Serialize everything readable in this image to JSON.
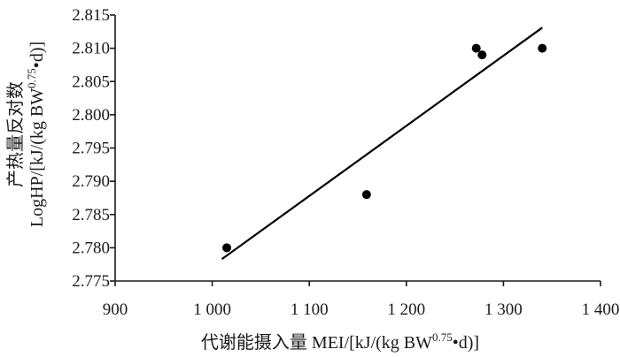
{
  "chart_data": {
    "type": "scatter",
    "title": "",
    "xlabel": {
      "prefix": "代谢能摄入量 MEI/[kJ/(kg BW",
      "sup": "0.75",
      "suffix": "•d)]"
    },
    "ylabel": {
      "line1": "产热量反对数",
      "line2_prefix": "LogHP/[kJ/(kg BW",
      "line2_sup": "0.75",
      "line2_suffix": "•d)]"
    },
    "xlim": [
      900,
      1400
    ],
    "ylim": [
      2.775,
      2.815
    ],
    "x_ticks": [
      {
        "value": 900,
        "label": "900"
      },
      {
        "value": 1000,
        "label": "1 000"
      },
      {
        "value": 1100,
        "label": "1 100"
      },
      {
        "value": 1200,
        "label": "1 200"
      },
      {
        "value": 1300,
        "label": "1 300"
      },
      {
        "value": 1400,
        "label": "1 400"
      }
    ],
    "y_ticks": [
      {
        "value": 2.775,
        "label": "2.775"
      },
      {
        "value": 2.78,
        "label": "2.780"
      },
      {
        "value": 2.785,
        "label": "2.785"
      },
      {
        "value": 2.79,
        "label": "2.790"
      },
      {
        "value": 2.795,
        "label": "2.795"
      },
      {
        "value": 2.8,
        "label": "2.800"
      },
      {
        "value": 2.805,
        "label": "2.805"
      },
      {
        "value": 2.81,
        "label": "2.810"
      },
      {
        "value": 2.815,
        "label": "2.815"
      }
    ],
    "points": [
      {
        "x": 1015,
        "y": 2.78
      },
      {
        "x": 1159,
        "y": 2.788
      },
      {
        "x": 1272,
        "y": 2.81
      },
      {
        "x": 1278,
        "y": 2.809
      },
      {
        "x": 1340,
        "y": 2.81
      }
    ],
    "trendline": {
      "x": [
        1010,
        1340
      ],
      "y": [
        2.7783,
        2.8131
      ]
    },
    "grid": false,
    "legend": "none"
  }
}
